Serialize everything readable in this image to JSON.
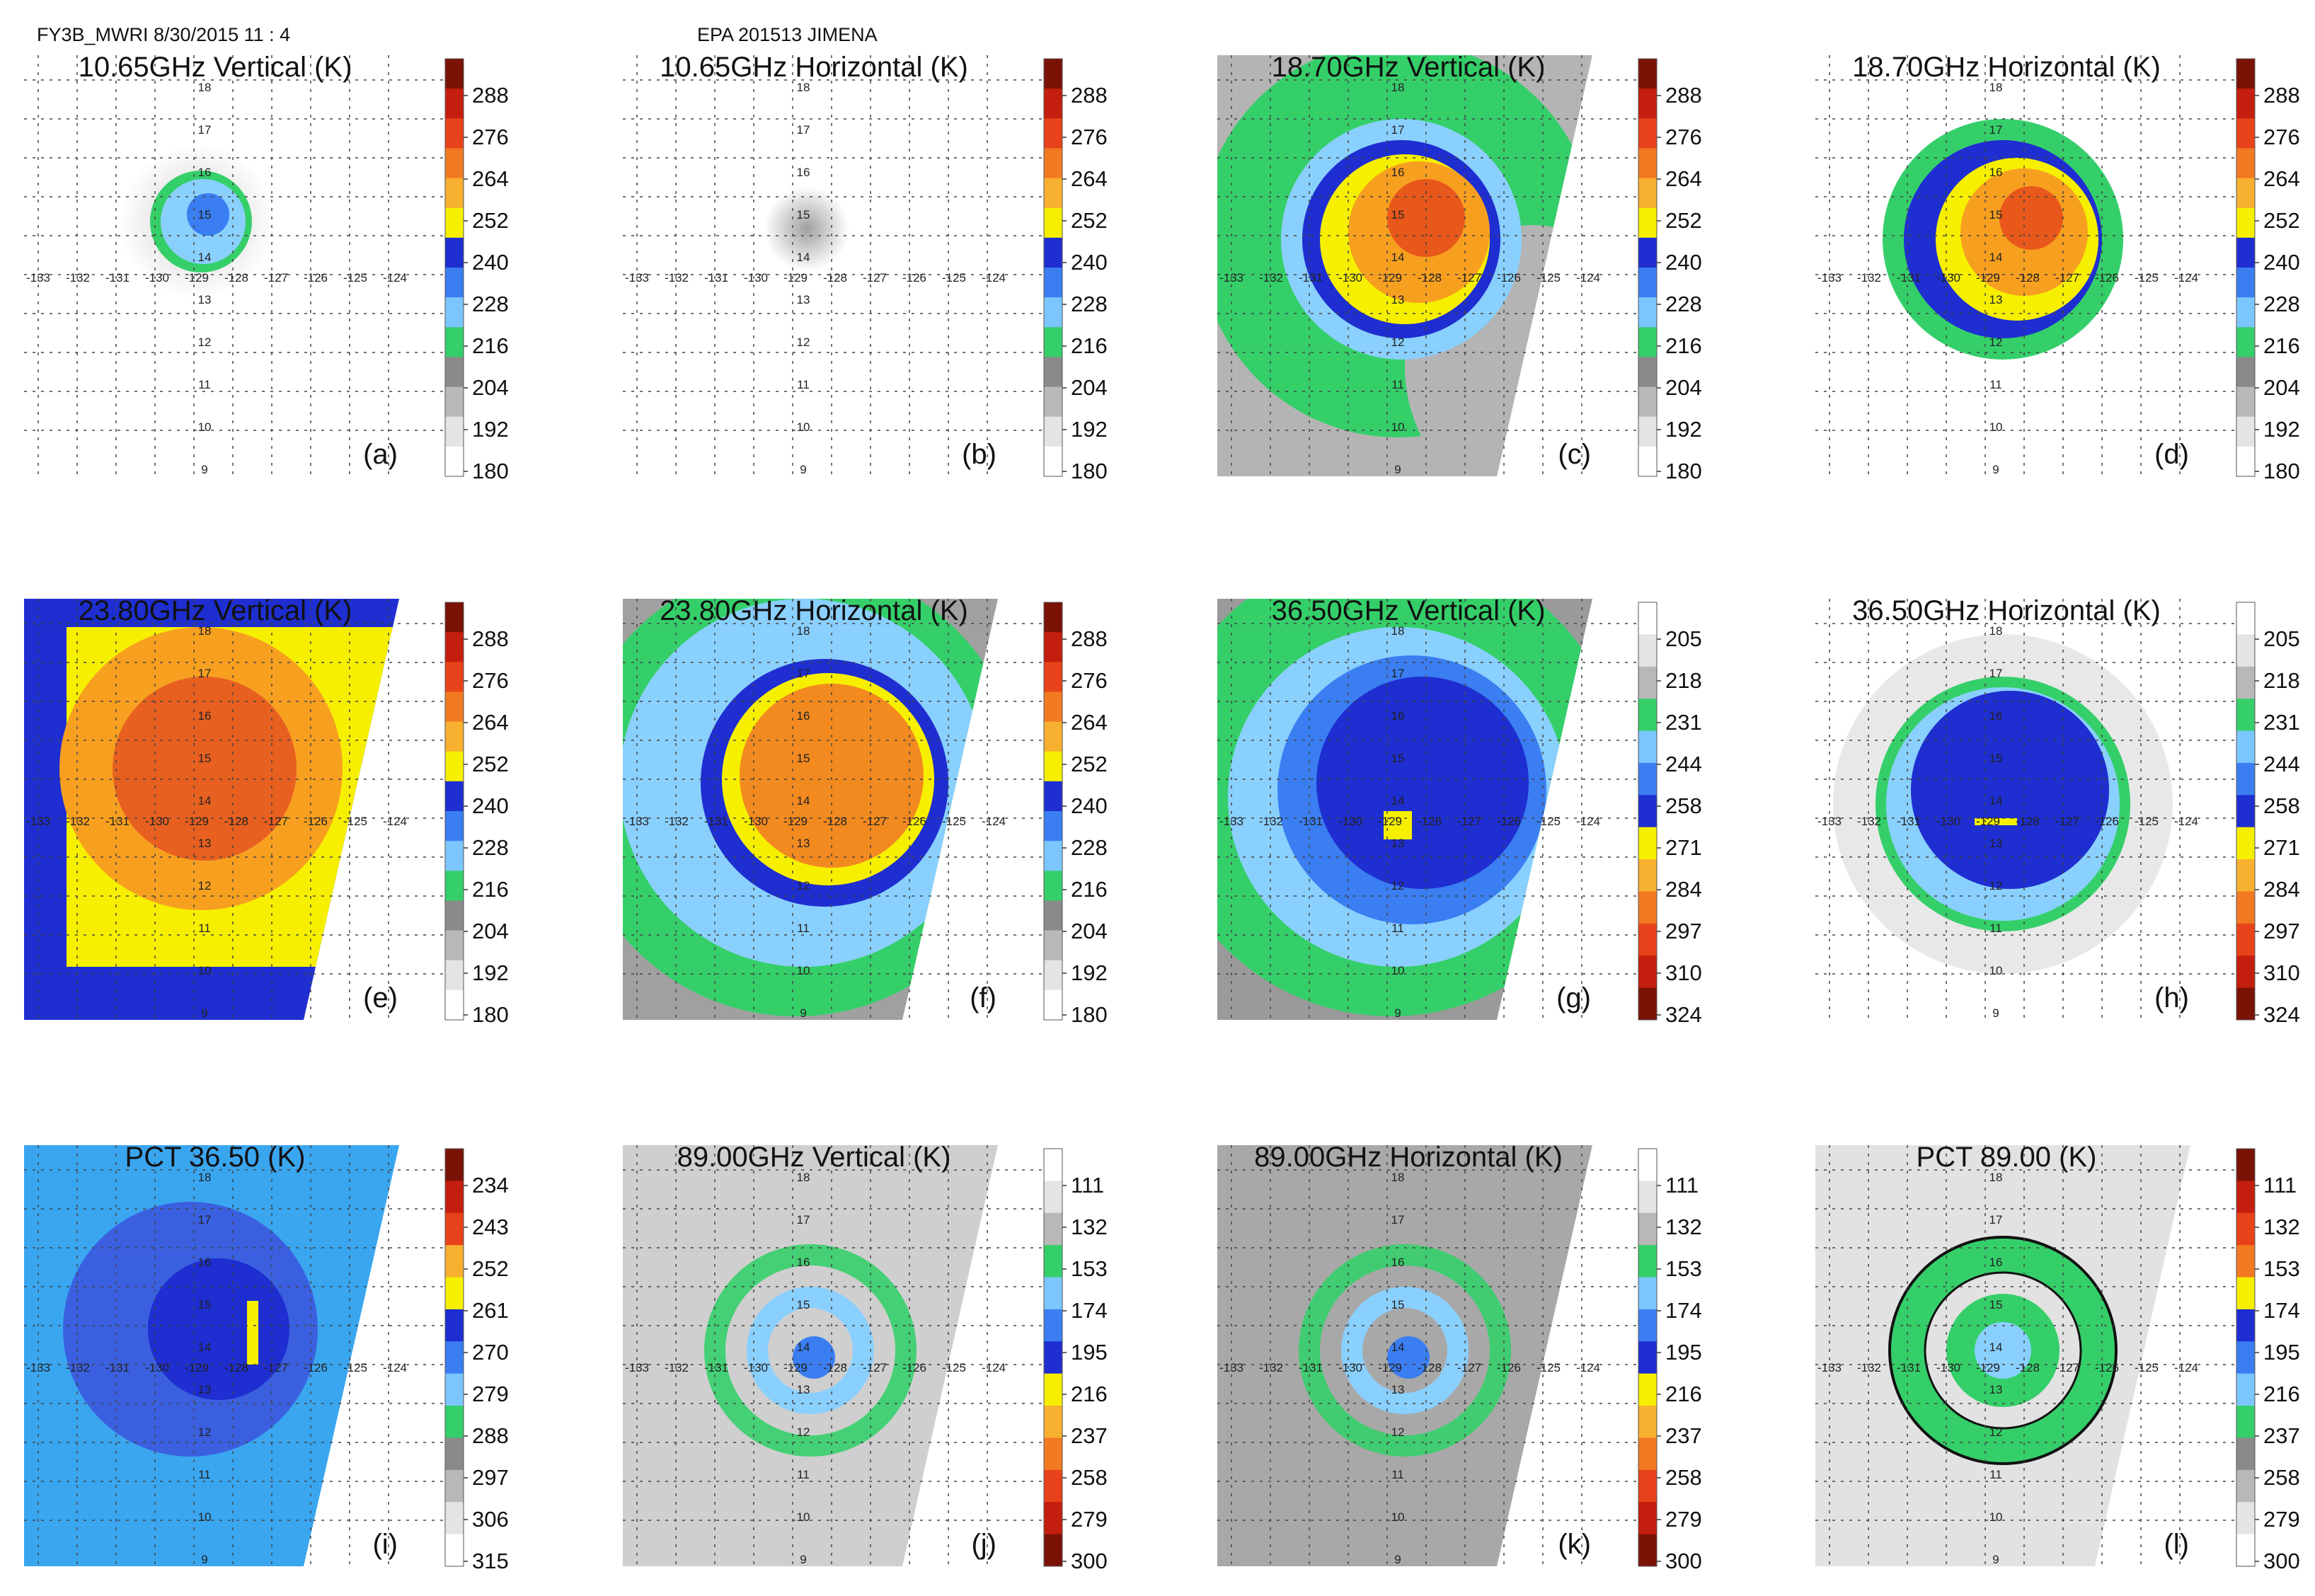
{
  "header": {
    "left": "FY3B_MWRI 8/30/2015 11 : 4",
    "center": "EPA 201513 JIMENA"
  },
  "colors": {
    "gray_ramp": [
      "#ffffff",
      "#e6e6e6",
      "#c8c8c8",
      "#a8a8a8",
      "#8c8c8c"
    ],
    "green": "#35cf6a",
    "light_blue": "#6cc0ff",
    "blue": "#1e3cd8",
    "dark_blue": "#0a14b4",
    "yellow": "#f6f000",
    "orange": "#f5a020",
    "red": "#e83a1a",
    "dark_red": "#7a1206",
    "sky": "#3aa6f0"
  },
  "chart_data": [
    {
      "id": "a",
      "type": "heatmap",
      "title": "10.65GHz Vertical (K)",
      "label": "(a)",
      "colorbar": "warm",
      "cb_ticks": [
        "288",
        "276",
        "264",
        "252",
        "240",
        "228",
        "216",
        "204",
        "192",
        "180"
      ],
      "lat_labels": [
        "18",
        "17",
        "16",
        "15",
        "14",
        "13",
        "12",
        "11",
        "10",
        "9"
      ],
      "lon_labels": [
        "-133",
        "-132",
        "-131",
        "-130",
        "-129",
        "-128",
        "-127",
        "-126",
        "-125",
        "-124"
      ],
      "field": "v10",
      "swath": false
    },
    {
      "id": "b",
      "type": "heatmap",
      "title": "10.65GHz Horizontal (K)",
      "label": "(b)",
      "colorbar": "warm",
      "cb_ticks": [
        "288",
        "276",
        "264",
        "252",
        "240",
        "228",
        "216",
        "204",
        "192",
        "180"
      ],
      "lat_labels": [
        "18",
        "17",
        "16",
        "15",
        "14",
        "13",
        "12",
        "11",
        "10",
        "9"
      ],
      "lon_labels": [
        "-133",
        "-132",
        "-131",
        "-130",
        "-129",
        "-128",
        "-127",
        "-126",
        "-125",
        "-124"
      ],
      "field": "h10",
      "swath": false
    },
    {
      "id": "c",
      "type": "heatmap",
      "title": "18.70GHz Vertical (K)",
      "label": "(c)",
      "colorbar": "warm",
      "cb_ticks": [
        "288",
        "276",
        "264",
        "252",
        "240",
        "228",
        "216",
        "204",
        "192",
        "180"
      ],
      "lat_labels": [
        "18",
        "17",
        "16",
        "15",
        "14",
        "13",
        "12",
        "11",
        "10",
        "9"
      ],
      "lon_labels": [
        "-133",
        "-132",
        "-131",
        "-130",
        "-129",
        "-128",
        "-127",
        "-126",
        "-125",
        "-124"
      ],
      "field": "v18",
      "swath": true
    },
    {
      "id": "d",
      "type": "heatmap",
      "title": "18.70GHz Horizontal (K)",
      "label": "(d)",
      "colorbar": "warm",
      "cb_ticks": [
        "288",
        "276",
        "264",
        "252",
        "240",
        "228",
        "216",
        "204",
        "192",
        "180"
      ],
      "lat_labels": [
        "18",
        "17",
        "16",
        "15",
        "14",
        "13",
        "12",
        "11",
        "10",
        "9"
      ],
      "lon_labels": [
        "-133",
        "-132",
        "-131",
        "-130",
        "-129",
        "-128",
        "-127",
        "-126",
        "-125",
        "-124"
      ],
      "field": "h18",
      "swath": false
    },
    {
      "id": "e",
      "type": "heatmap",
      "title": "23.80GHz Vertical (K)",
      "label": "(e)",
      "colorbar": "warm",
      "cb_ticks": [
        "288",
        "276",
        "264",
        "252",
        "240",
        "228",
        "216",
        "204",
        "192",
        "180"
      ],
      "lat_labels": [
        "18",
        "17",
        "16",
        "15",
        "14",
        "13",
        "12",
        "11",
        "10",
        "9"
      ],
      "lon_labels": [
        "-133",
        "-132",
        "-131",
        "-130",
        "-129",
        "-128",
        "-127",
        "-126",
        "-125",
        "-124"
      ],
      "field": "v23",
      "swath": true
    },
    {
      "id": "f",
      "type": "heatmap",
      "title": "23.80GHz Horizontal (K)",
      "label": "(f)",
      "colorbar": "warm",
      "cb_ticks": [
        "288",
        "276",
        "264",
        "252",
        "240",
        "228",
        "216",
        "204",
        "192",
        "180"
      ],
      "lat_labels": [
        "18",
        "17",
        "16",
        "15",
        "14",
        "13",
        "12",
        "11",
        "10",
        "9"
      ],
      "lon_labels": [
        "-133",
        "-132",
        "-131",
        "-130",
        "-129",
        "-128",
        "-127",
        "-126",
        "-125",
        "-124"
      ],
      "field": "h23",
      "swath": true
    },
    {
      "id": "g",
      "type": "heatmap",
      "title": "36.50GHz Vertical (K)",
      "label": "(g)",
      "colorbar": "cool",
      "cb_ticks": [
        "205",
        "218",
        "231",
        "244",
        "258",
        "271",
        "284",
        "297",
        "310",
        "324"
      ],
      "lat_labels": [
        "18",
        "17",
        "16",
        "15",
        "14",
        "13",
        "12",
        "11",
        "10",
        "9"
      ],
      "lon_labels": [
        "-133",
        "-132",
        "-131",
        "-130",
        "-129",
        "-128",
        "-127",
        "-126",
        "-125",
        "-124"
      ],
      "field": "v36",
      "swath": true
    },
    {
      "id": "h",
      "type": "heatmap",
      "title": "36.50GHz Horizontal (K)",
      "label": "(h)",
      "colorbar": "cool",
      "cb_ticks": [
        "205",
        "218",
        "231",
        "244",
        "258",
        "271",
        "284",
        "297",
        "310",
        "324"
      ],
      "lat_labels": [
        "18",
        "17",
        "16",
        "15",
        "14",
        "13",
        "12",
        "11",
        "10",
        "9"
      ],
      "lon_labels": [
        "-133",
        "-132",
        "-131",
        "-130",
        "-129",
        "-128",
        "-127",
        "-126",
        "-125",
        "-124"
      ],
      "field": "h36",
      "swath": false
    },
    {
      "id": "i",
      "type": "heatmap",
      "title": "PCT 36.50 (K)",
      "label": "(i)",
      "colorbar": "pct36",
      "cb_ticks": [
        "234",
        "243",
        "252",
        "261",
        "270",
        "279",
        "288",
        "297",
        "306",
        "315"
      ],
      "lat_labels": [
        "18",
        "17",
        "16",
        "15",
        "14",
        "13",
        "12",
        "11",
        "10",
        "9"
      ],
      "lon_labels": [
        "-133",
        "-132",
        "-131",
        "-130",
        "-129",
        "-128",
        "-127",
        "-126",
        "-125",
        "-124"
      ],
      "field": "pct36",
      "swath": true
    },
    {
      "id": "j",
      "type": "heatmap",
      "title": "89.00GHz Vertical (K)",
      "label": "(j)",
      "colorbar": "cool",
      "cb_ticks": [
        "111",
        "132",
        "153",
        "174",
        "195",
        "216",
        "237",
        "258",
        "279",
        "300"
      ],
      "lat_labels": [
        "18",
        "17",
        "16",
        "15",
        "14",
        "13",
        "12",
        "11",
        "10",
        "9"
      ],
      "lon_labels": [
        "-133",
        "-132",
        "-131",
        "-130",
        "-129",
        "-128",
        "-127",
        "-126",
        "-125",
        "-124"
      ],
      "field": "v89",
      "swath": true
    },
    {
      "id": "k",
      "type": "heatmap",
      "title": "89.00GHz Horizontal (K)",
      "label": "(k)",
      "colorbar": "cool",
      "cb_ticks": [
        "111",
        "132",
        "153",
        "174",
        "195",
        "216",
        "237",
        "258",
        "279",
        "300"
      ],
      "lat_labels": [
        "18",
        "17",
        "16",
        "15",
        "14",
        "13",
        "12",
        "11",
        "10",
        "9"
      ],
      "lon_labels": [
        "-133",
        "-132",
        "-131",
        "-130",
        "-129",
        "-128",
        "-127",
        "-126",
        "-125",
        "-124"
      ],
      "field": "h89",
      "swath": true
    },
    {
      "id": "l",
      "type": "heatmap",
      "title": "PCT 89.00 (K)",
      "label": "(l)",
      "colorbar": "pct89",
      "cb_ticks": [
        "111",
        "132",
        "153",
        "174",
        "195",
        "216",
        "237",
        "258",
        "279",
        "300"
      ],
      "lat_labels": [
        "18",
        "17",
        "16",
        "15",
        "14",
        "13",
        "12",
        "11",
        "10",
        "9"
      ],
      "lon_labels": [
        "-133",
        "-132",
        "-131",
        "-130",
        "-129",
        "-128",
        "-127",
        "-126",
        "-125",
        "-124"
      ],
      "field": "pct89",
      "swath": true
    }
  ]
}
